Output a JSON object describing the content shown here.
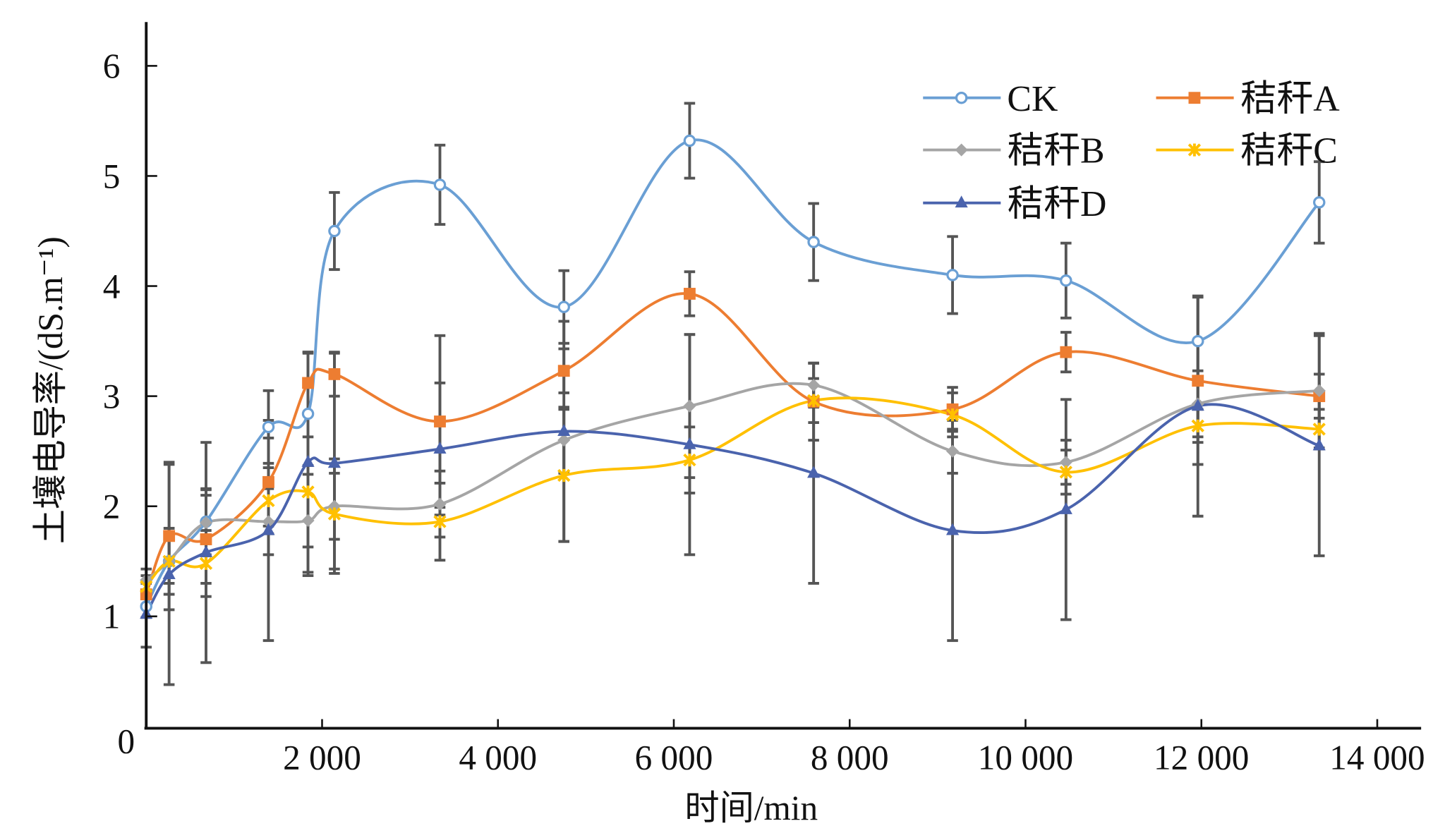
{
  "chart_data": {
    "type": "line",
    "title": "",
    "xlabel": "时间/min",
    "ylabel": "土壤电导率/(dS.m⁻¹)",
    "xlim": [
      0,
      14000
    ],
    "ylim": [
      0,
      6.4
    ],
    "xticks": [
      2000,
      4000,
      6000,
      8000,
      10000,
      12000,
      14000
    ],
    "xtick_labels": [
      "2 000",
      "4 000",
      "6 000",
      "8 000",
      "10 000",
      "12 000",
      "14 000"
    ],
    "yticks": [
      0,
      1,
      2,
      3,
      4,
      5,
      6
    ],
    "ytick_labels": [
      "0",
      "1",
      "2",
      "3",
      "4",
      "5",
      "6"
    ],
    "grid": false,
    "legend_position": "top-right",
    "x": [
      0,
      260,
      680,
      1390,
      1840,
      2140,
      3340,
      4750,
      6180,
      7590,
      9170,
      10460,
      11960,
      13340
    ],
    "series": [
      {
        "name": "CK",
        "color": "#6a9fd4",
        "marker": "circle-open",
        "values": [
          1.09,
          1.5,
          1.86,
          2.72,
          2.84,
          4.5,
          4.92,
          3.81,
          5.32,
          4.4,
          4.1,
          4.05,
          3.5,
          4.76
        ],
        "errors": [
          0.1,
          0.3,
          0.3,
          0.33,
          0.55,
          0.35,
          0.36,
          0.33,
          0.34,
          0.35,
          0.35,
          0.34,
          0.4,
          0.37
        ]
      },
      {
        "name": "秸秆A",
        "color": "#ed7d31",
        "marker": "square",
        "values": [
          1.2,
          1.73,
          1.7,
          2.22,
          3.12,
          3.2,
          2.77,
          3.23,
          3.93,
          2.95,
          2.88,
          3.4,
          3.14,
          3.0
        ],
        "errors": [
          0.1,
          0.67,
          0.4,
          0.4,
          0.28,
          0.2,
          0.78,
          0.2,
          0.2,
          0.35,
          0.2,
          0.18,
          0.76,
          0.2
        ]
      },
      {
        "name": "秸秆B",
        "color": "#a5a5a5",
        "marker": "diamond",
        "values": [
          1.33,
          1.5,
          1.85,
          1.86,
          1.87,
          2.0,
          2.02,
          2.6,
          2.91,
          3.1,
          2.5,
          2.4,
          2.93,
          3.05
        ],
        "errors": [
          0.1,
          0.3,
          0.3,
          0.3,
          0.5,
          0.3,
          0.3,
          0.3,
          0.65,
          0.2,
          0.2,
          0.2,
          0.3,
          0.52
        ]
      },
      {
        "name": "秸秆C",
        "color": "#ffc000",
        "marker": "x",
        "values": [
          1.27,
          1.5,
          1.48,
          2.05,
          2.13,
          1.93,
          1.86,
          2.28,
          2.42,
          2.96,
          2.83,
          2.31,
          2.73,
          2.7
        ],
        "errors": [
          0.1,
          0.2,
          0.3,
          0.3,
          0.5,
          0.5,
          0.35,
          0.6,
          0.3,
          0.2,
          0.2,
          0.2,
          0.15,
          0.18
        ]
      },
      {
        "name": "秸秆D",
        "color": "#4a63ad",
        "marker": "triangle",
        "values": [
          1.02,
          1.38,
          1.58,
          1.78,
          2.4,
          2.39,
          2.52,
          2.68,
          2.56,
          2.3,
          1.78,
          1.97,
          2.91,
          2.55
        ],
        "errors": [
          0.3,
          1.0,
          1.0,
          1.0,
          1.0,
          1.0,
          0.6,
          1.0,
          1.0,
          1.0,
          1.0,
          1.0,
          1.0,
          1.0
        ]
      }
    ]
  }
}
